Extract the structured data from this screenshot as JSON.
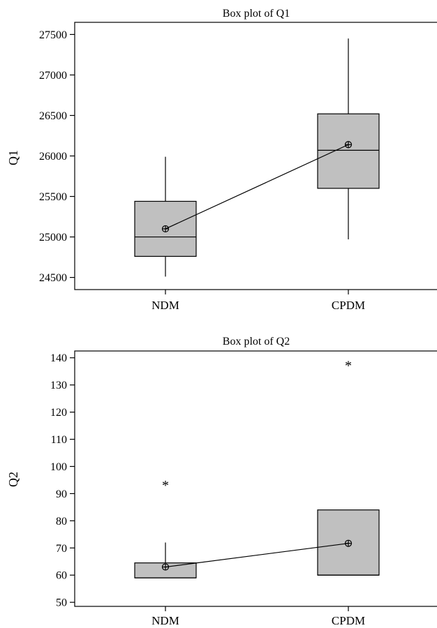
{
  "chart_data": [
    {
      "type": "box",
      "title": "Box plot of Q1",
      "ylabel": "Q1",
      "categories": [
        "NDM",
        "CPDM"
      ],
      "ylim": [
        24350,
        27650
      ],
      "yticks": [
        24500,
        25000,
        25500,
        26000,
        26500,
        27000,
        27500
      ],
      "boxes": [
        {
          "category": "NDM",
          "whisker_low": 24510,
          "q1": 24760,
          "median": 25000,
          "q3": 25440,
          "whisker_high": 25990,
          "mean": 25100,
          "outliers": []
        },
        {
          "category": "CPDM",
          "whisker_low": 24970,
          "q1": 25600,
          "median": 26070,
          "q3": 26520,
          "whisker_high": 27450,
          "mean": 26140,
          "outliers": []
        }
      ],
      "mean_connect_line": true
    },
    {
      "type": "box",
      "title": "Box plot of Q2",
      "ylabel": "Q2",
      "categories": [
        "NDM",
        "CPDM"
      ],
      "ylim": [
        48.5,
        142.5
      ],
      "yticks": [
        50,
        60,
        70,
        80,
        90,
        100,
        110,
        120,
        130,
        140
      ],
      "boxes": [
        {
          "category": "NDM",
          "whisker_low": 59,
          "q1": 59,
          "median": 59,
          "q3": 64.5,
          "whisker_high": 72,
          "mean": 63,
          "outliers": [
            94
          ]
        },
        {
          "category": "CPDM",
          "whisker_low": 60,
          "q1": 60,
          "median": 60,
          "q3": 84,
          "whisker_high": 84,
          "mean": 71.7,
          "outliers": [
            138
          ]
        }
      ],
      "mean_connect_line": true
    }
  ]
}
